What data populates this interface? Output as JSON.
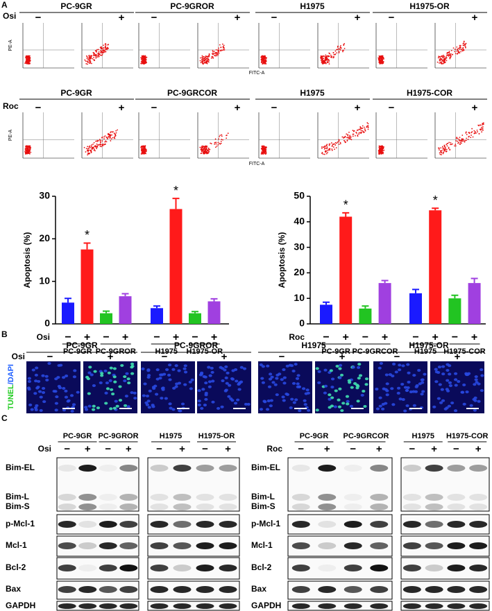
{
  "signs": {
    "minus": "−",
    "plus": "+"
  },
  "panel_a": {
    "label": "A",
    "flow": [
      {
        "treatment": "Osi",
        "groups": [
          "PC-9GR",
          "PC-9GROR",
          "H1975",
          "H1975-OR"
        ],
        "y_axis": "PE-A",
        "x_axis": "FITC-A"
      },
      {
        "treatment": "Roc",
        "groups": [
          "PC-9GR",
          "PC-9GRCOR",
          "H1975",
          "H1975-COR"
        ],
        "y_axis": "PE-A",
        "x_axis": "FITC-A"
      }
    ],
    "charts": [
      {
        "type": "bar",
        "ylabel": "Apoptosis (%)",
        "treatment": "Osi",
        "groups": [
          "PC-9GR",
          "PC-9GROR",
          "H1975",
          "H1975-OR"
        ],
        "values": [
          5,
          17.5,
          2.5,
          6.5,
          3.7,
          27,
          2.5,
          5.3
        ],
        "errors": [
          1,
          1.5,
          0.5,
          0.6,
          0.5,
          2.5,
          0.4,
          0.6
        ],
        "colors": [
          "#1a1aff",
          "#ff1a1a",
          "#22c422",
          "#a040e0",
          "#1a1aff",
          "#ff1a1a",
          "#22c422",
          "#a040e0"
        ],
        "sig_labels": [
          null,
          "*",
          null,
          null,
          null,
          "*",
          null,
          null
        ],
        "ylim": [
          0,
          30
        ],
        "yticks": [
          0,
          10,
          20,
          30
        ]
      },
      {
        "type": "bar",
        "ylabel": "Apoptosis (%)",
        "treatment": "Roc",
        "groups": [
          "PC-9GR",
          "PC-9GRCOR",
          "H1975",
          "H1975-COR"
        ],
        "values": [
          7.5,
          42,
          6,
          16,
          12,
          44.5,
          10,
          16
        ],
        "errors": [
          1,
          1.5,
          1,
          1,
          1.5,
          0.8,
          1.2,
          1.8
        ],
        "colors": [
          "#1a1aff",
          "#ff1a1a",
          "#22c422",
          "#a040e0",
          "#1a1aff",
          "#ff1a1a",
          "#22c422",
          "#a040e0"
        ],
        "sig_labels": [
          null,
          "*",
          null,
          null,
          null,
          "*",
          null,
          null
        ],
        "ylim": [
          0,
          50
        ],
        "yticks": [
          0,
          10,
          20,
          30,
          40,
          50
        ]
      }
    ]
  },
  "panel_b": {
    "label": "B",
    "treatment": "Osi",
    "stain": [
      "TUNEL",
      "/DAPI"
    ],
    "groups": [
      "PC-9GR",
      "PC-9GROR",
      "H1975",
      "H1975-OR"
    ]
  },
  "panel_c": {
    "label": "C",
    "blots": [
      {
        "treatment": "Osi",
        "groups": [
          "PC-9GR",
          "PC-9GROR",
          "H1975",
          "H1975-OR"
        ],
        "bands": [
          "Bim-EL",
          "Bim-L",
          "Bim-S",
          "p-Mcl-1",
          "Mcl-1",
          "Bcl-2",
          "Bax",
          "GAPDH"
        ]
      },
      {
        "treatment": "Roc",
        "groups": [
          "PC-9GR",
          "PC-9GRCOR",
          "H1975",
          "H1975-COR"
        ],
        "bands": [
          "Bim-EL",
          "Bim-L",
          "Bim-S",
          "p-Mcl-1",
          "Mcl-1",
          "Bcl-2",
          "Bax",
          "GAPDH"
        ]
      }
    ]
  }
}
